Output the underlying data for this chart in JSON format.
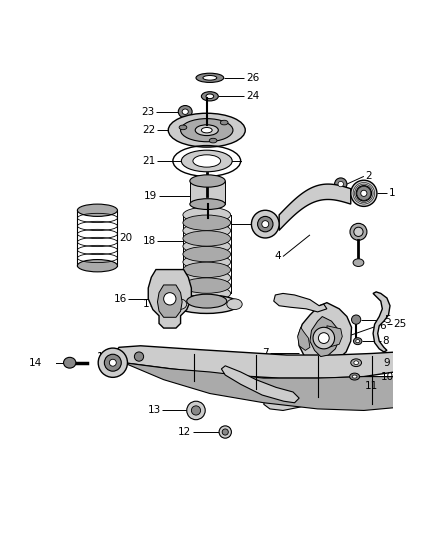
{
  "background_color": "#ffffff",
  "line_color": "#000000",
  "fig_width": 4.38,
  "fig_height": 5.33,
  "dpi": 100
}
